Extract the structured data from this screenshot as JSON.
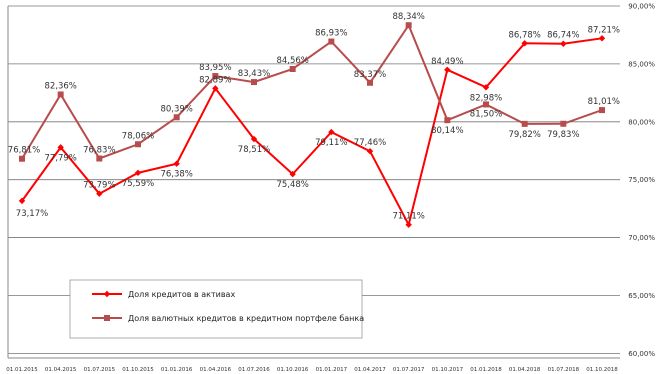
{
  "chart_data": {
    "type": "line",
    "y_tick_labels": [
      "60,00%",
      "65,00%",
      "70,00%",
      "75,00%",
      "80,00%",
      "85,00%",
      "90,00%"
    ],
    "y_ticks": [
      60,
      65,
      70,
      75,
      80,
      85,
      90
    ],
    "ylim": [
      59.6,
      90
    ],
    "grid": "horizontal major lines",
    "legend_position": "bottom-left",
    "categories": [
      "01.01.2015",
      "01.04.2015",
      "01.07.2015",
      "01.10.2015",
      "01.01.2016",
      "01.04.2016",
      "01.07.2016",
      "01.10.2016",
      "01.01.2017",
      "01.04.2017",
      "01.07.2017",
      "01.10.2017",
      "01.01.2018",
      "01.04.2018",
      "01.07.2018",
      "01.10.2018"
    ],
    "series": [
      {
        "name": "Доля кредитов в активах",
        "color": "#ff0000",
        "marker": "diamond",
        "values": [
          73.17,
          77.79,
          73.79,
          75.59,
          76.38,
          82.89,
          78.51,
          75.48,
          79.11,
          77.46,
          71.11,
          84.49,
          82.98,
          86.78,
          86.74,
          87.21
        ],
        "labels": [
          "73,17%",
          "77,79%",
          "73,79%",
          "75,59%",
          "76,38%",
          "82,89%",
          "78,51%",
          "75,48%",
          "79,11%",
          "77,46%",
          "71,11%",
          "84,49%",
          "82,98%",
          "86,78%",
          "86,74%",
          "87,21%"
        ]
      },
      {
        "name": "Доля валютных кредитов в кредитном портфеле банка",
        "color": "#b84c4c",
        "marker": "square",
        "values": [
          76.81,
          82.36,
          76.83,
          78.06,
          80.39,
          83.95,
          83.43,
          84.56,
          86.93,
          83.37,
          88.34,
          80.14,
          81.5,
          79.82,
          79.83,
          81.01
        ],
        "labels": [
          "76,81%",
          "82,36%",
          "76,83%",
          "78,06%",
          "80,39%",
          "83,95%",
          "83,43%",
          "84,56%",
          "86,93%",
          "83,37%",
          "88,34%",
          "80,14%",
          "81,50%",
          "79,82%",
          "79,83%",
          "81,01%"
        ]
      }
    ]
  }
}
